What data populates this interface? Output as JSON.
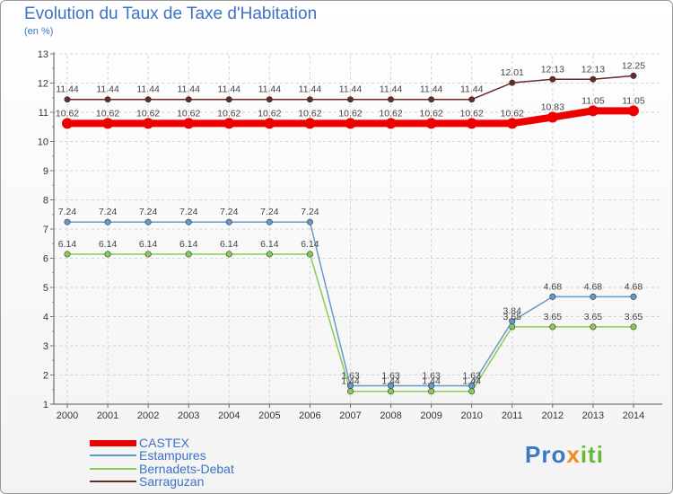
{
  "title": "Evolution du Taux de Taxe d'Habitation",
  "subtitle": "(en %)",
  "logo": {
    "parts": [
      "Pro",
      "x",
      "iti"
    ],
    "colors": [
      "#3a78c7",
      "#f28a1e",
      "#6ab837"
    ]
  },
  "chart_data": {
    "type": "line",
    "title": "Evolution du Taux de Taxe d'Habitation",
    "ylabel": "(en %)",
    "xlabel": "",
    "ylim": [
      1,
      13
    ],
    "yticks": [
      1,
      2,
      3,
      4,
      5,
      6,
      7,
      8,
      9,
      10,
      11,
      12,
      13
    ],
    "grid": true,
    "categories": [
      "2000",
      "2001",
      "2002",
      "2003",
      "2004",
      "2005",
      "2006",
      "2007",
      "2008",
      "2009",
      "2010",
      "2011",
      "2012",
      "2013",
      "2014"
    ],
    "series": [
      {
        "name": "CASTEX",
        "color": "#ee0000",
        "values": [
          10.62,
          10.62,
          10.62,
          10.62,
          10.62,
          10.62,
          10.62,
          10.62,
          10.62,
          10.62,
          10.62,
          10.62,
          10.83,
          11.05,
          11.05
        ],
        "labels": [
          "10.62",
          "10.62",
          "10.62",
          "10.62",
          "10.62",
          "10.62",
          "10.62",
          "10.62",
          "10.62",
          "10.62",
          "10.62",
          "10.62",
          "10.83",
          "11.05",
          "11.05"
        ]
      },
      {
        "name": "Estampures",
        "color": "#6699cc",
        "values": [
          7.24,
          7.24,
          7.24,
          7.24,
          7.24,
          7.24,
          7.24,
          1.63,
          1.63,
          1.63,
          1.63,
          3.84,
          4.68,
          4.68,
          4.68
        ],
        "labels": [
          "7.24",
          "7.24",
          "7.24",
          "7.24",
          "7.24",
          "7.24",
          "7.24",
          "1.63",
          "1.63",
          "1.63",
          "1.63",
          "3.84",
          "4.68",
          "4.68",
          "4.68"
        ]
      },
      {
        "name": "Bernadets-Debat",
        "color": "#88cc55",
        "values": [
          6.14,
          6.14,
          6.14,
          6.14,
          6.14,
          6.14,
          6.14,
          1.44,
          1.44,
          1.44,
          1.44,
          3.65,
          3.65,
          3.65,
          3.65
        ],
        "labels": [
          "6.14",
          "6.14",
          "6.14",
          "6.14",
          "6.14",
          "6.14",
          "6.14",
          "1.44",
          "1.44",
          "1.44",
          "1.44",
          "3.65",
          "3.65",
          "3.65",
          "3.65"
        ]
      },
      {
        "name": "Sarraguzan",
        "color": "#6b2a2a",
        "values": [
          11.44,
          11.44,
          11.44,
          11.44,
          11.44,
          11.44,
          11.44,
          11.44,
          11.44,
          11.44,
          11.44,
          12.01,
          12.13,
          12.13,
          12.25
        ],
        "labels": [
          "11.44",
          "11.44",
          "11.44",
          "11.44",
          "11.44",
          "11.44",
          "11.44",
          "11.44",
          "11.44",
          "11.44",
          "11.44",
          "12.01",
          "12.13",
          "12.13",
          "12.25"
        ]
      }
    ],
    "legend_position": "bottom-left"
  }
}
